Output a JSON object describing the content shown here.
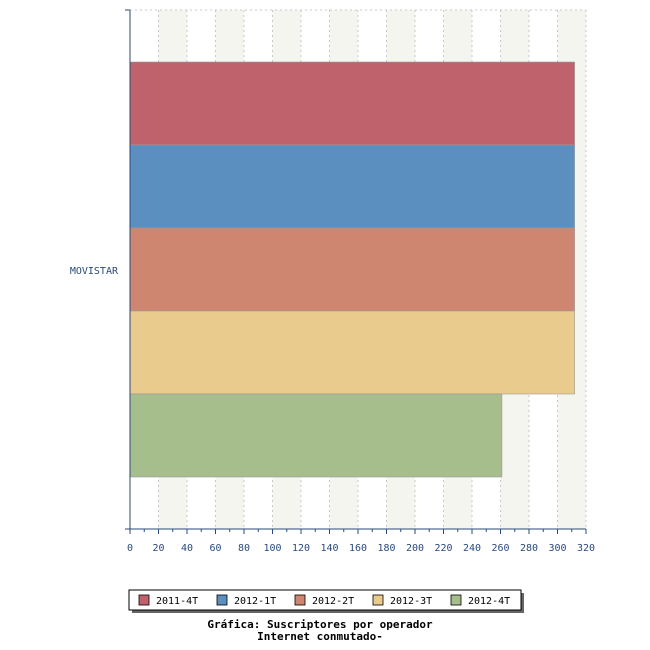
{
  "chart_data": {
    "type": "bar",
    "orientation": "horizontal",
    "title_lines": [
      "Gráfica: Suscriptores por operador",
      "Internet conmutado-"
    ],
    "categories": [
      "MOVISTAR"
    ],
    "series": [
      {
        "name": "2011-4T",
        "color": "#c0626b",
        "values": [
          312
        ]
      },
      {
        "name": "2012-1T",
        "color": "#5b8fc0",
        "values": [
          312
        ]
      },
      {
        "name": "2012-2T",
        "color": "#cf8670",
        "values": [
          312
        ]
      },
      {
        "name": "2012-3T",
        "color": "#e9cb8d",
        "values": [
          312
        ]
      },
      {
        "name": "2012-4T",
        "color": "#a6bd8c",
        "values": [
          261
        ]
      }
    ],
    "xlim": [
      0,
      320
    ],
    "xticks": [
      0,
      20,
      40,
      60,
      80,
      100,
      120,
      140,
      160,
      180,
      200,
      220,
      240,
      260,
      280,
      300,
      320
    ],
    "grid": true,
    "legend_position": "bottom"
  }
}
